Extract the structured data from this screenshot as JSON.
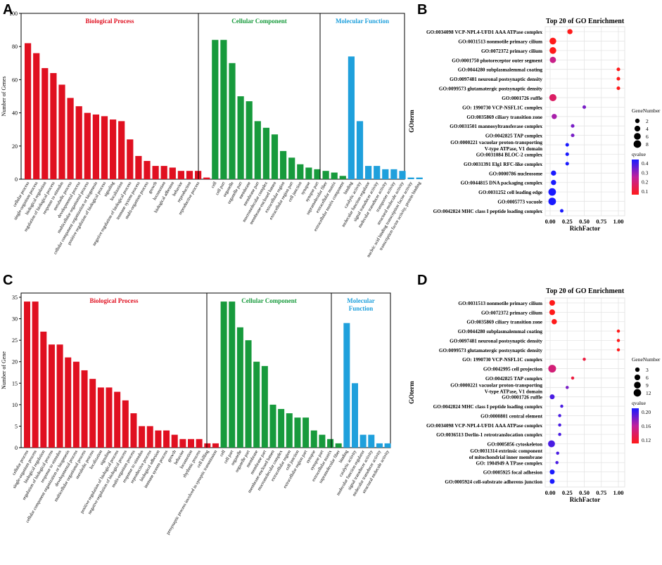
{
  "colors": {
    "bp": "#e01020",
    "cc": "#179a3c",
    "mf": "#1fa0dc",
    "axis": "#000000",
    "qhigh": "#1a1aff",
    "qmid": "#c0219c",
    "qlow": "#ff1a1a"
  },
  "panels": {
    "A": {
      "letter": "A",
      "chart_data": {
        "type": "bar",
        "ylabel": "Number of Genes",
        "ylim": [
          0,
          100
        ],
        "yticks": [
          0,
          20,
          40,
          60,
          80,
          100
        ],
        "groups": [
          {
            "name": "Biological Process",
            "key": "bp",
            "categories": [
              "cellular process",
              "single-organism process",
              "biological regulation",
              "regulation of biological process",
              "response to stimulus",
              "metabolic process",
              "developmental process",
              "multicellular organismal process",
              "cellular component organization or biogenesis",
              "positive regulation of biological process",
              "signaling",
              "localization",
              "negative regulation of biological process",
              "immune system process",
              "multi-organism process",
              "growth",
              "locomotion",
              "biological adhesion",
              "behavior",
              "reproduction",
              "reproductive process"
            ],
            "values": [
              82,
              76,
              67,
              64,
              57,
              49,
              44,
              40,
              39,
              38,
              36,
              35,
              24,
              14,
              11,
              8,
              8,
              7,
              5,
              5,
              5
            ]
          },
          {
            "name": "Cellular Component",
            "key": "cc",
            "categories": [
              "cell",
              "cell part",
              "organelle",
              "organelle part",
              "membrane",
              "membrane part",
              "macromolecular complex",
              "membrane-enclosed lumen",
              "extracellular region",
              "extracellular region part",
              "cell junction",
              "synapse",
              "synapse part",
              "supramolecular fiber",
              "extracellular matrix",
              "extracellular matrix component"
            ],
            "values": [
              84,
              84,
              70,
              50,
              47,
              35,
              31,
              27,
              17,
              13,
              9,
              7,
              6,
              5,
              4,
              2
            ]
          },
          {
            "name": "Molecular Function",
            "key": "mf",
            "categories": [
              "binding",
              "catalytic activity",
              "molecular function regulator",
              "signal transducer activity",
              "molecular transducer activity",
              "transporter activity",
              "structural molecule activity",
              "nucleic acid binding transcription factor activity",
              "transcription factor activity, protein binding"
            ],
            "values": [
              74,
              35,
              8,
              8,
              6,
              6,
              5,
              1,
              1
            ]
          }
        ],
        "extra": {
          "categories": [
            "reproductive process"
          ],
          "values": [
            1
          ]
        }
      }
    },
    "C": {
      "letter": "C",
      "chart_data": {
        "type": "bar",
        "ylabel": "Number of Gene",
        "ylim": [
          0,
          35
        ],
        "yticks": [
          0,
          5,
          10,
          15,
          20,
          25,
          30,
          35
        ],
        "groups": [
          {
            "name": "Biological Process",
            "key": "bp",
            "categories": [
              "cellular process",
              "single-organism process",
              "biological regulation",
              "regulation of biological process",
              "response to stimulus",
              "cellular component organization or biogenesis",
              "developmental process",
              "multicellular organismal process",
              "metabolic process",
              "localization",
              "signaling",
              "positive regulation of biological process",
              "negative regulation of biological process",
              "multi-organism process",
              "response to stimulus",
              "reproductive process",
              "biological adhesion",
              "immune system process",
              "growth",
              "behavior",
              "locomotion",
              "rhythmic process",
              "cell killing",
              "presynaptic process involved in synaptic transmission"
            ],
            "values": [
              34,
              34,
              27,
              24,
              24,
              21,
              20,
              18,
              16,
              14,
              14,
              13,
              11,
              8,
              5,
              5,
              4,
              4,
              3,
              2,
              2,
              2,
              1,
              1
            ]
          },
          {
            "name": "Cellular Component",
            "key": "cc",
            "categories": [
              "cell",
              "cell part",
              "organelle",
              "organelle part",
              "membrane",
              "membrane part",
              "membrane-enclosed lumen",
              "macromolecular complex",
              "extracellular region",
              "cell junction",
              "extracellular region part",
              "synapse",
              "synapse part",
              "extracellular matrix",
              "supramolecular fiber"
            ],
            "values": [
              34,
              34,
              28,
              25,
              20,
              19,
              10,
              9,
              8,
              7,
              7,
              4,
              3,
              2,
              1
            ]
          },
          {
            "name": "Molecular Function",
            "key": "mf",
            "categories": [
              "binding",
              "catalytic activity",
              "molecular function regulator",
              "signal transducer activity",
              "molecular transducer activity",
              "structural molecule activity"
            ],
            "values": [
              29,
              15,
              3,
              3,
              1,
              1
            ]
          }
        ]
      }
    },
    "B": {
      "letter": "B",
      "chart_data": {
        "type": "scatter",
        "title": "Top 20 of GO Enrichment",
        "xlabel": "RichFactor",
        "ylabel": "GOterm",
        "xlim": [
          0,
          1
        ],
        "xticks": [
          "0.00",
          "0.25",
          "0.50",
          "0.75",
          "1.00"
        ],
        "terms": [
          "GO:0034098 VCP-NPL4-UFD1 AAA ATPase complex",
          "GO:0031513 nonmotile primary cilium",
          "GO:0072372 primary cilium",
          "GO:0001750 photoreceptor outer segment",
          "GO:0044280 subplasmalemmal coating",
          "GO:0097481 neuronal postsynaptic density",
          "GO:0099573 glutamatergic postsynaptic density",
          "GO:0001726 ruffle",
          "GO: 1990730 VCP-NSFL1C complex",
          "GO:0035869 ciliary transition zone",
          "GO:0031501 mannosyltransferase complex",
          "GO:0042825 TAP complex",
          "GO:0000221 vacuolar proton-transporting V-type ATPase, V1 domain",
          "GO:0031084 BLOC-2 complex",
          "GO:0031391 Elg1 RFC-like complex",
          "GO:0000786 nucleosome",
          "GO:0044815 DNA packaging complex",
          "GO:0031252 cell leading edge",
          "GO:0005773 vacuole",
          "GO:0042824 MHC class I peptide loading complex"
        ],
        "richfactor": [
          0.29,
          0.04,
          0.04,
          0.04,
          1.0,
          1.0,
          1.0,
          0.04,
          0.5,
          0.06,
          0.33,
          0.33,
          0.25,
          0.25,
          0.25,
          0.05,
          0.05,
          0.03,
          0.03,
          0.17
        ],
        "genes": [
          3,
          6,
          6,
          5,
          1,
          1,
          1,
          7,
          1,
          3,
          1,
          1,
          1,
          1,
          1,
          3,
          3,
          8,
          8,
          1
        ],
        "qvalue": [
          0.1,
          0.1,
          0.1,
          0.25,
          0.1,
          0.1,
          0.1,
          0.2,
          0.35,
          0.3,
          0.35,
          0.35,
          0.45,
          0.45,
          0.45,
          0.45,
          0.45,
          0.45,
          0.45,
          0.45
        ],
        "legend": {
          "size_title": "GeneNumber",
          "sizes": [
            "2",
            "4",
            "6",
            "8"
          ],
          "color_title": "qvalue",
          "color_ticks": [
            "0.4",
            "0.3",
            "0.2",
            "0.1"
          ]
        }
      }
    },
    "D": {
      "letter": "D",
      "chart_data": {
        "type": "scatter",
        "title": "Top 20 of GO Enrichment",
        "xlabel": "RichFactor",
        "ylabel": "GOterm",
        "xlim": [
          0,
          1
        ],
        "xticks": [
          "0.00",
          "0.25",
          "0.50",
          "0.75",
          "1.00"
        ],
        "terms": [
          "GO:0031513 nonmotile primary cilium",
          "GO:0072372 primary cilium",
          "GO:0035869 ciliary transition zone",
          "GO:0044280 subplasmalemmal coating",
          "GO:0097481 neuronal postsynaptic density",
          "GO:0099573 glutamatergic postsynaptic density",
          "GO: 1990730 VCP-NSFL1C complex",
          "GO:0042995 cell projection",
          "GO:0042825 TAP complex",
          "GO:0000221 vacuolar proton-transporting V-type ATPase, V1 domain",
          "GO:0001726 ruffle",
          "GO:0042824 MHC class I peptide loading complex",
          "GO:0000801 central element",
          "GO:0034098 VCP-NPL4-UFD1 AAA ATPase complex",
          "GO:0036513 Derlin-1 retrotranslocation complex",
          "GO:0005856 cytoskeleton",
          "GO:0031314 extrinsic component of mitochondrial inner membrane",
          "GO: 1904949 A TPase complex",
          "GO:0005925 focal adhesion",
          "GO:0005924 cell-substrate adherens junction"
        ],
        "richfactor": [
          0.03,
          0.03,
          0.06,
          1.0,
          1.0,
          1.0,
          0.5,
          0.03,
          0.33,
          0.25,
          0.03,
          0.17,
          0.14,
          0.14,
          0.14,
          0.02,
          0.11,
          0.1,
          0.03,
          0.03
        ],
        "genes": [
          6,
          6,
          5,
          1,
          1,
          1,
          1,
          13,
          1,
          1,
          4,
          1,
          1,
          1,
          1,
          10,
          1,
          1,
          4,
          4
        ],
        "qvalue": [
          0.1,
          0.1,
          0.1,
          0.1,
          0.1,
          0.1,
          0.12,
          0.15,
          0.12,
          0.2,
          0.22,
          0.22,
          0.22,
          0.22,
          0.22,
          0.22,
          0.22,
          0.22,
          0.24,
          0.24
        ],
        "legend": {
          "size_title": "GeneNumber",
          "sizes": [
            "3",
            "6",
            "9",
            "12"
          ],
          "color_title": "qvalue",
          "color_ticks": [
            "0.20",
            "0.16",
            "0.12"
          ]
        }
      }
    }
  }
}
